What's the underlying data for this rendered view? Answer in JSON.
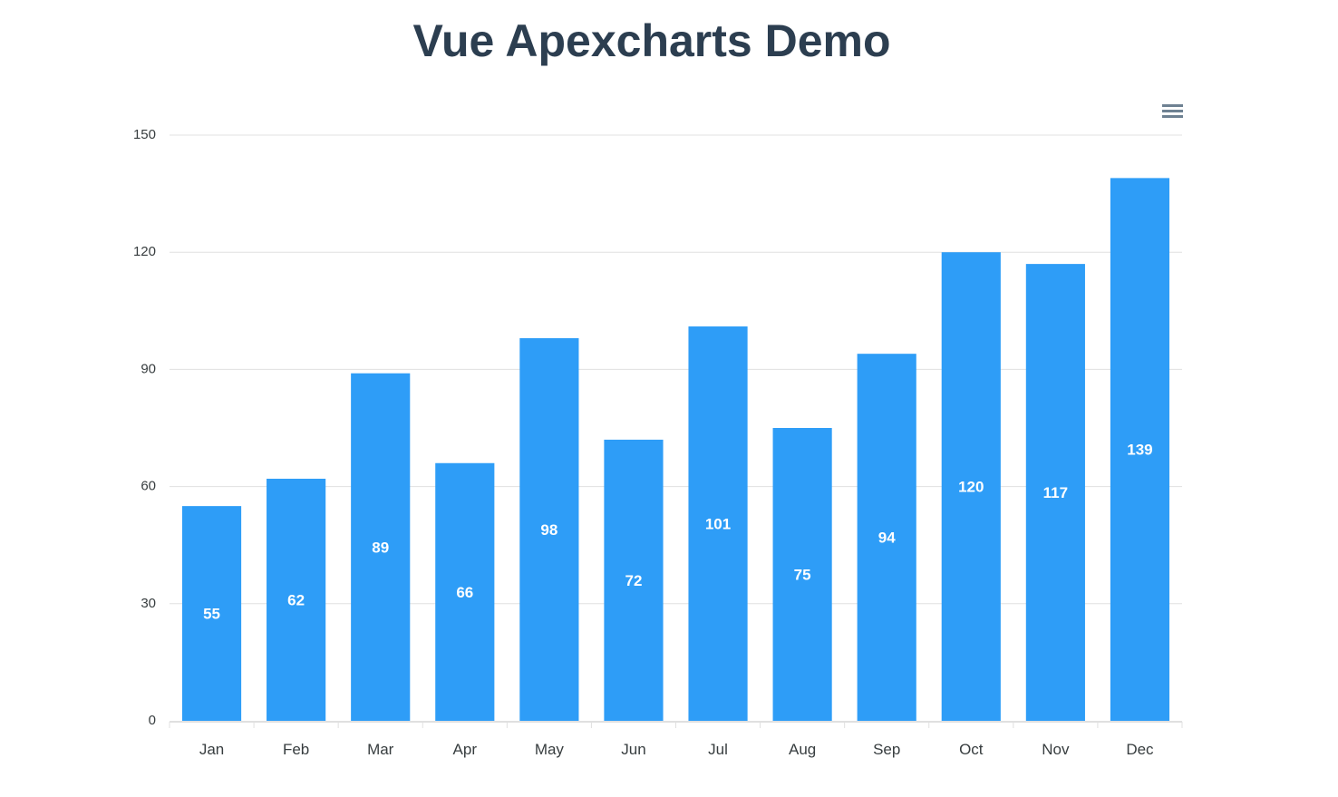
{
  "page": {
    "title": "Vue Apexcharts Demo"
  },
  "toolbar": {
    "menu_icon": "hamburger-menu-icon"
  },
  "colors": {
    "bar": "#2e9df7",
    "title": "#2c3e50",
    "grid": "#e0e0e0",
    "axis_label": "#373d3f",
    "data_label": "#ffffff",
    "menu_icon": "#6e8192"
  },
  "chart_data": {
    "type": "bar",
    "categories": [
      "Jan",
      "Feb",
      "Mar",
      "Apr",
      "May",
      "Jun",
      "Jul",
      "Aug",
      "Sep",
      "Oct",
      "Nov",
      "Dec"
    ],
    "values": [
      55,
      62,
      89,
      66,
      98,
      72,
      101,
      75,
      94,
      120,
      117,
      139
    ],
    "yticks": [
      "0",
      "30",
      "60",
      "90",
      "120",
      "150"
    ],
    "ylim": [
      0,
      150
    ],
    "data_labels": true,
    "grid": true,
    "legend": "none"
  }
}
